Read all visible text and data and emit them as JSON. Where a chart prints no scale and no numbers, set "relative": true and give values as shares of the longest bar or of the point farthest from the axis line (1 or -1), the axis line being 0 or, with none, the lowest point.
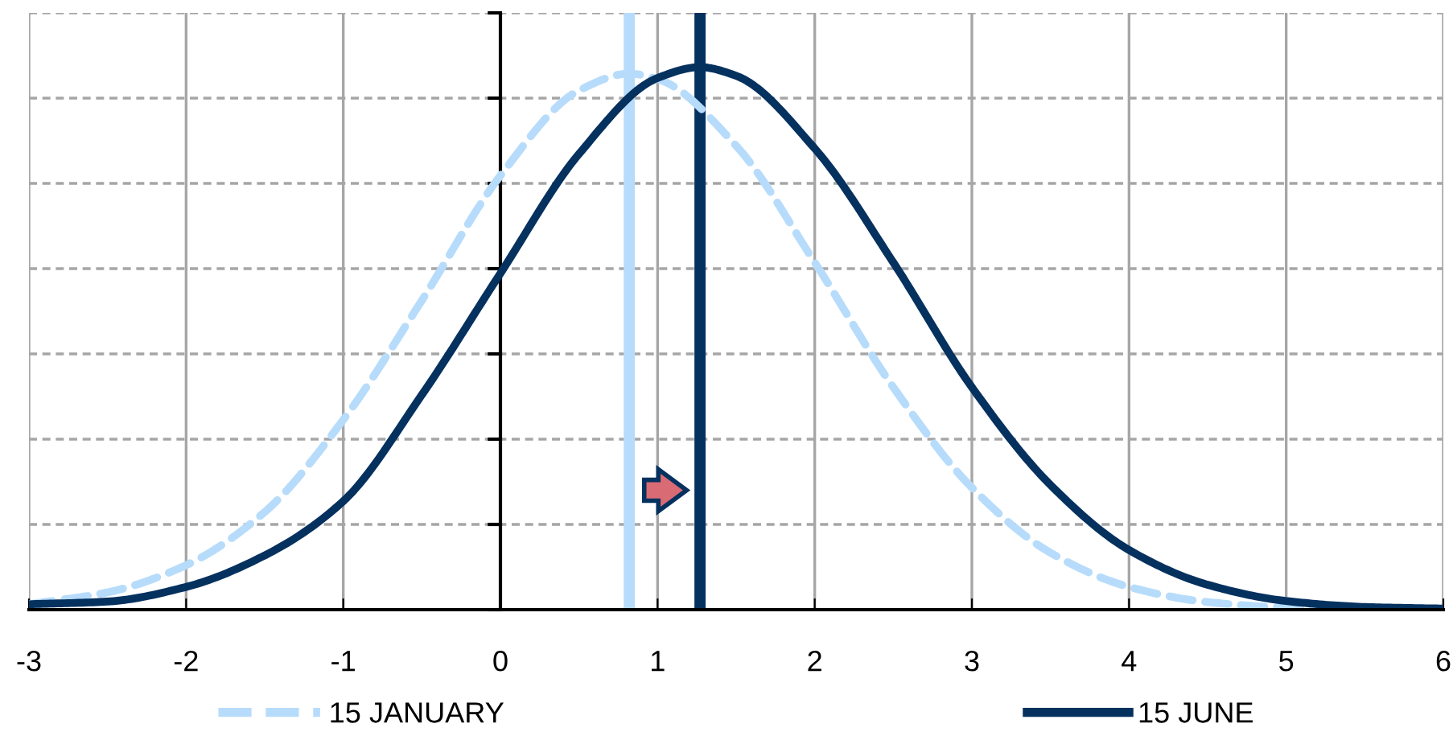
{
  "chart_data": {
    "type": "line",
    "relative": true,
    "xlim": [
      -3,
      6
    ],
    "xticks": [
      -3,
      -2,
      -1,
      0,
      1,
      2,
      3,
      4,
      5,
      6
    ],
    "grid": true,
    "legend": "bottom",
    "marker": "none",
    "series": [
      {
        "name": "15 JANUARY",
        "color": "#b7dcfb",
        "line_style": "dashed",
        "x": [
          -3,
          -2.5,
          -2,
          -1.5,
          -1,
          -0.5,
          0,
          0.5,
          0.82,
          1,
          1.5,
          2,
          2.5,
          3,
          3.5,
          4,
          4.5,
          5,
          5.5,
          6
        ],
        "values": [
          0.01,
          0.032,
          0.082,
          0.18,
          0.35,
          0.57,
          0.8,
          0.957,
          0.988,
          0.978,
          0.855,
          0.64,
          0.41,
          0.225,
          0.105,
          0.042,
          0.014,
          0.004,
          0.001,
          0
        ]
      },
      {
        "name": "15 JUNE",
        "color": "#05315f",
        "line_style": "solid",
        "x": [
          -3,
          -2.5,
          -2,
          -1.5,
          -1,
          -0.5,
          0,
          0.5,
          1,
          1.27,
          1.5,
          2,
          2.5,
          3,
          3.5,
          4,
          4.5,
          5,
          5.5,
          6
        ],
        "values": [
          0.01,
          0.015,
          0.042,
          0.1,
          0.2,
          0.396,
          0.62,
          0.84,
          0.98,
          1,
          0.984,
          0.85,
          0.64,
          0.41,
          0.23,
          0.11,
          0.046,
          0.016,
          0.005,
          0.002
        ]
      }
    ],
    "ref_lines": [
      {
        "axis": "x",
        "value": 0.82,
        "color": "#b7dcfb",
        "line_style": "solid"
      },
      {
        "axis": "x",
        "value": 1.27,
        "color": "#05315f",
        "line_style": "solid"
      }
    ]
  }
}
